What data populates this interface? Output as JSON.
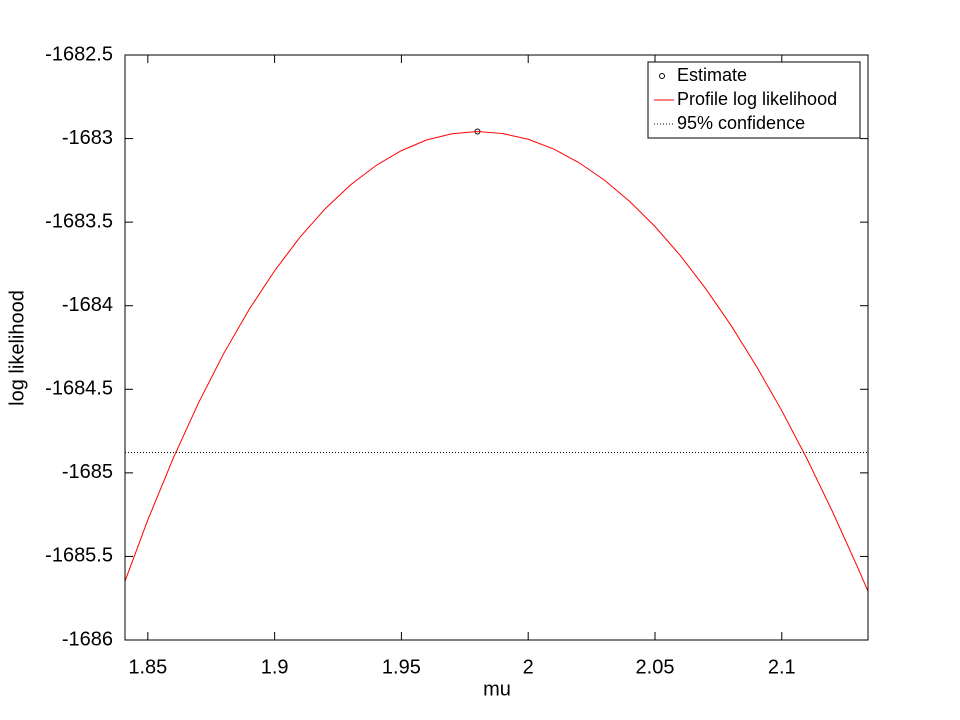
{
  "chart_data": {
    "type": "line",
    "xlabel": "mu",
    "ylabel": "log likelihood",
    "xlim": [
      1.841,
      2.134
    ],
    "ylim": [
      -1686,
      -1682.5
    ],
    "xticks": [
      1.85,
      1.9,
      1.95,
      2,
      2.05,
      2.1
    ],
    "yticks": [
      -1686,
      -1685.5,
      -1685,
      -1684.5,
      -1684,
      -1683.5,
      -1683,
      -1682.5
    ],
    "legend": "top-right",
    "series": [
      {
        "name": "Estimate",
        "style": "marker",
        "color": "#000000",
        "x": [
          1.98
        ],
        "values": [
          -1682.958
        ]
      },
      {
        "name": "Profile log likelihood",
        "style": "line",
        "color": "#ff0000",
        "x": [
          1.841,
          1.85,
          1.86,
          1.87,
          1.88,
          1.89,
          1.9,
          1.91,
          1.92,
          1.93,
          1.94,
          1.95,
          1.96,
          1.97,
          1.98,
          1.99,
          2,
          2.01,
          2.02,
          2.03,
          2.04,
          2.05,
          2.06,
          2.07,
          2.08,
          2.09,
          2.1,
          2.11,
          2.12,
          2.13,
          2.134
        ],
        "values": [
          -1685.648,
          -1685.282,
          -1684.913,
          -1684.581,
          -1684.284,
          -1684.021,
          -1683.791,
          -1683.59,
          -1683.419,
          -1683.276,
          -1683.161,
          -1683.072,
          -1683.008,
          -1682.971,
          -1682.958,
          -1682.97,
          -1683.004,
          -1683.062,
          -1683.144,
          -1683.248,
          -1683.376,
          -1683.526,
          -1683.7,
          -1683.898,
          -1684.118,
          -1684.362,
          -1684.628,
          -1684.918,
          -1685.232,
          -1685.568,
          -1685.709
        ]
      },
      {
        "name": "95% confidence",
        "style": "hline",
        "color": "#000000",
        "values": [
          -1684.878
        ]
      }
    ]
  }
}
